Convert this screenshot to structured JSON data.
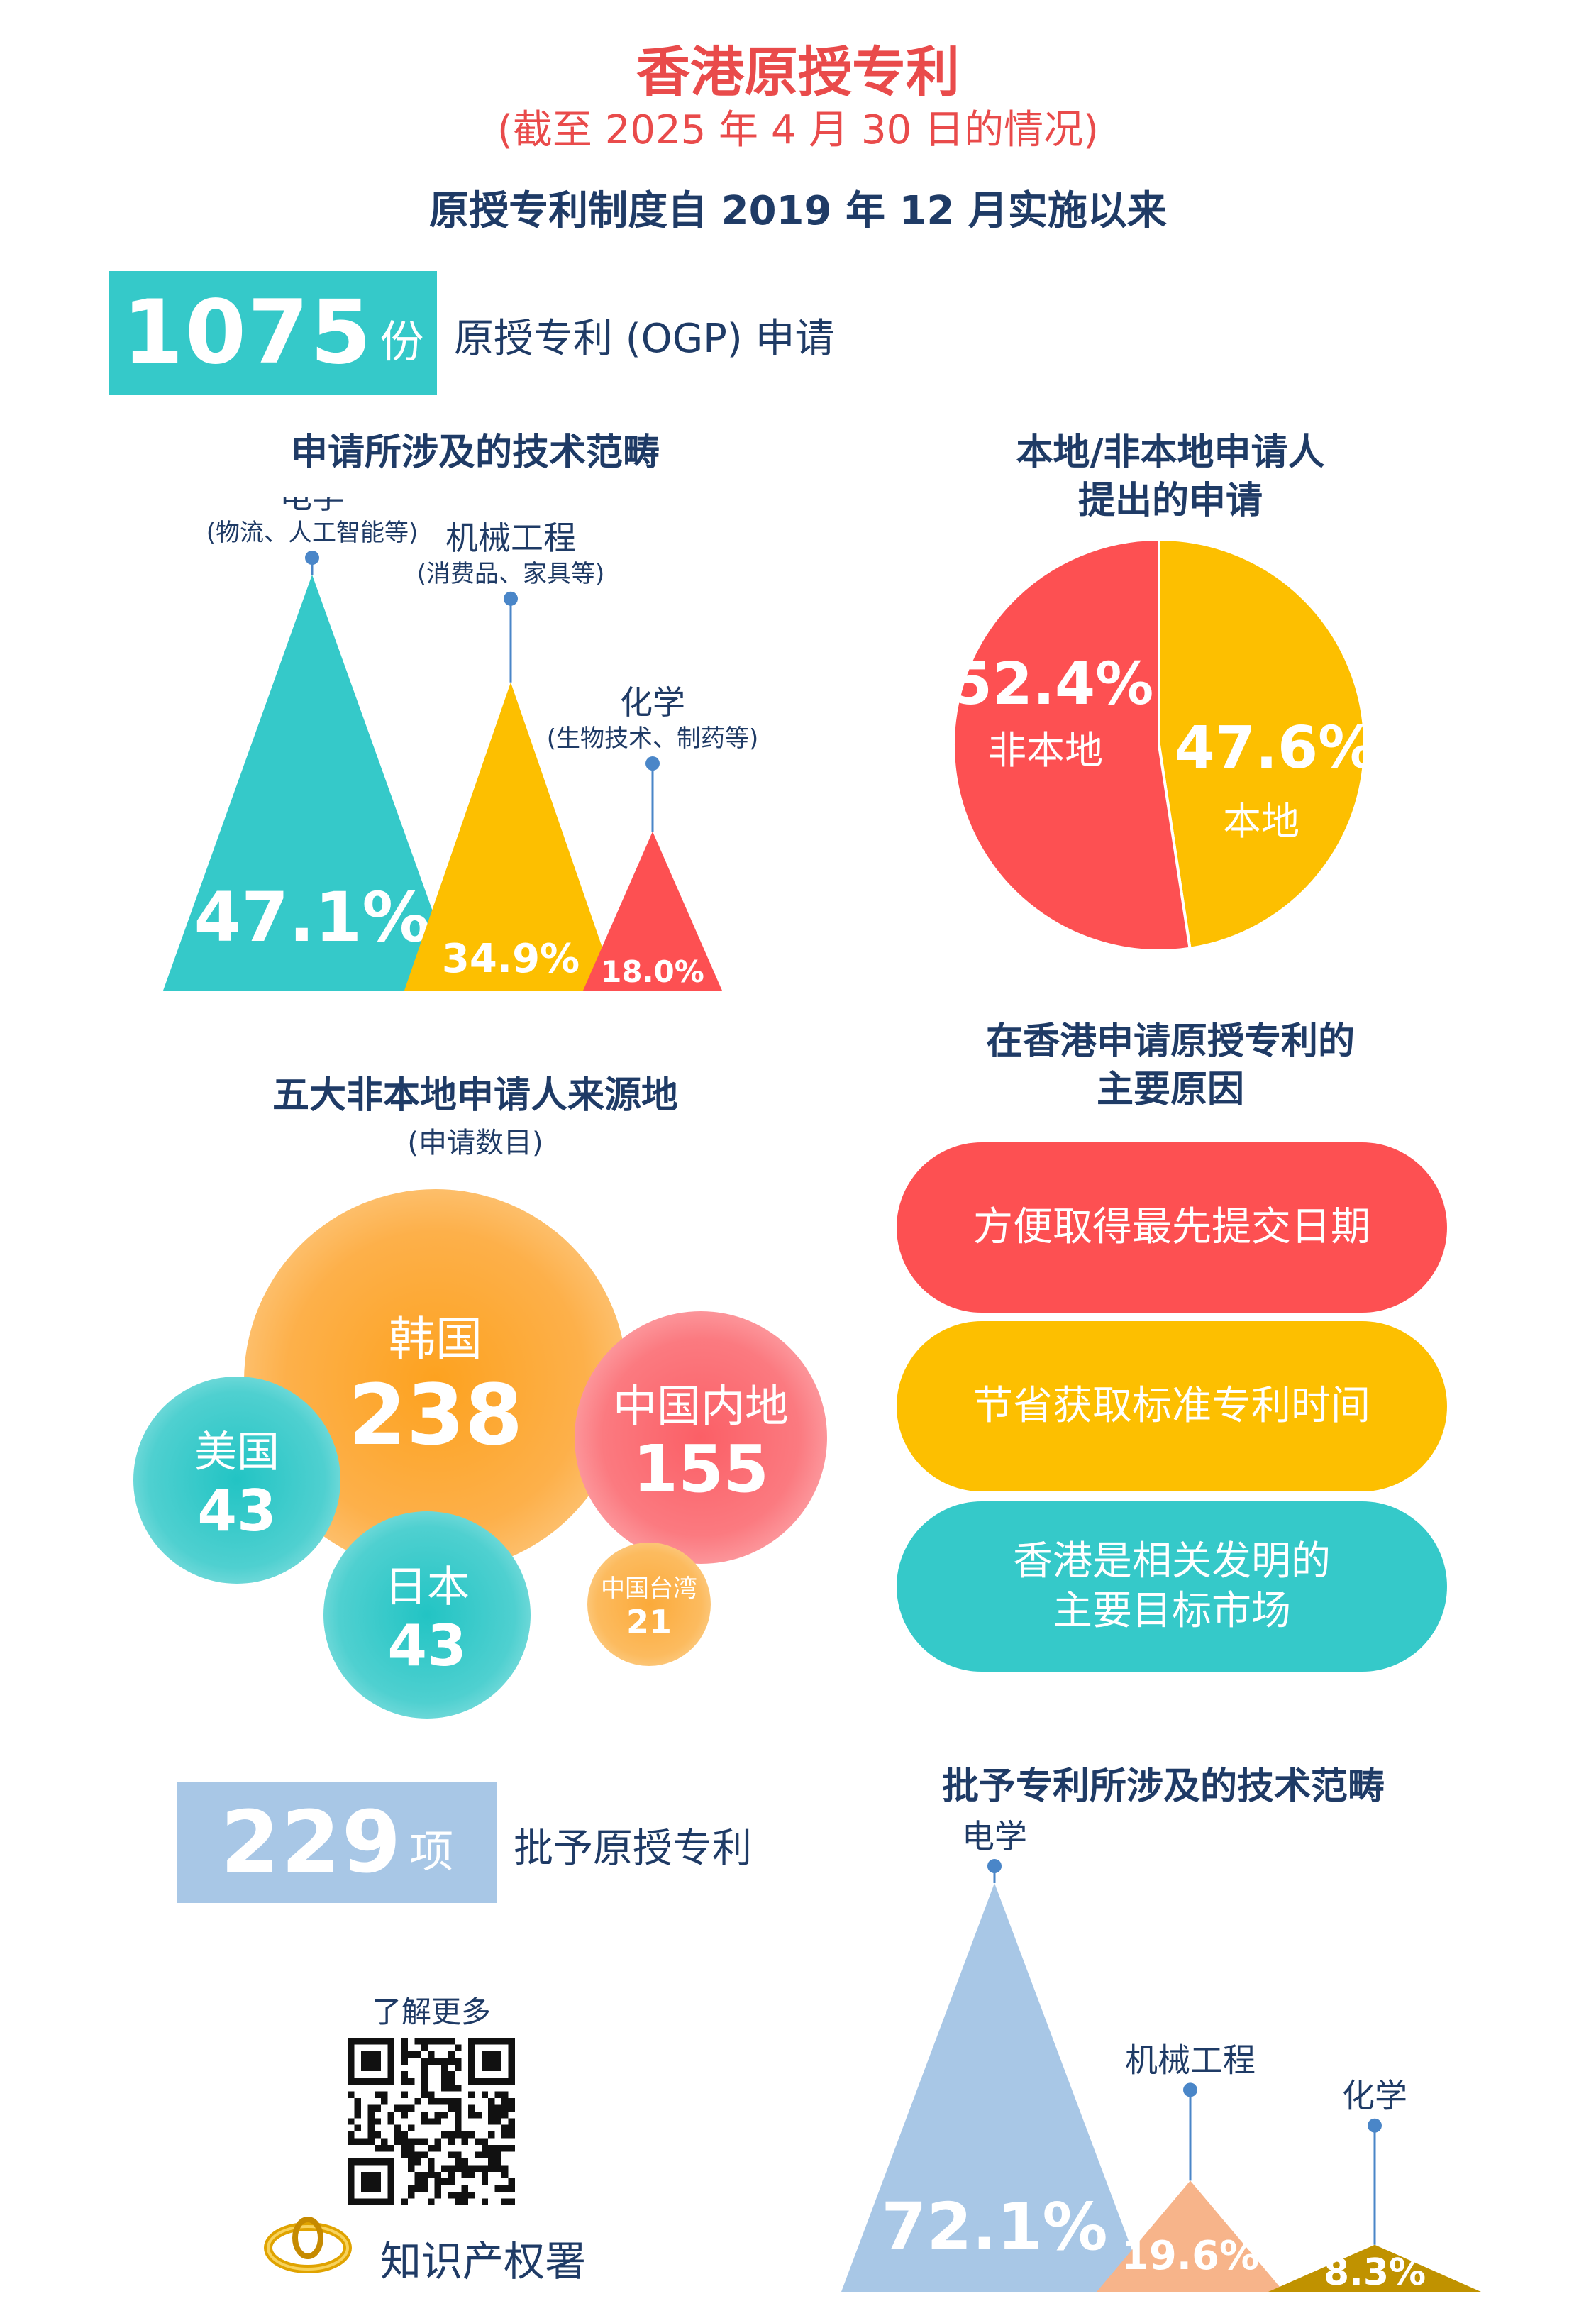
{
  "header": {
    "title": "香港原授专利",
    "subtitle": "(截至 2025 年 4 月 30 日的情况)",
    "since": "原授专利制度自 2019 年 12 月实施以来"
  },
  "applications": {
    "count": "1075",
    "unit": "份",
    "label": "原授专利 (OGP) 申请"
  },
  "grants": {
    "count": "229",
    "unit": "项",
    "label": "批予原授专利"
  },
  "footer": {
    "learn_more": "了解更多",
    "org": "知识产权署"
  },
  "colors": {
    "teal": "#35c9c9",
    "yellow": "#fdbf00",
    "red": "#fd5052",
    "lightblue": "#a8c7e6",
    "peach": "#f7b48a",
    "gold": "#c09200"
  },
  "chart_data": [
    {
      "type": "bar",
      "title": "申请所涉及的技术范畴",
      "categories": [
        "电学",
        "机械工程",
        "化学"
      ],
      "notes": [
        "(物流、人工智能等)",
        "(消费品、家具等)",
        "(生物技术、制药等)"
      ],
      "values": [
        47.1,
        34.9,
        18.0
      ],
      "labels": [
        "47.1%",
        "34.9%",
        "18.0%"
      ],
      "colors": [
        "#35c9c9",
        "#fdbf00",
        "#fd5052"
      ]
    },
    {
      "type": "pie",
      "title_lines": [
        "本地/非本地申请人",
        "提出的申请"
      ],
      "slices": [
        {
          "name": "非本地",
          "value": 52.4,
          "label": "52.4%",
          "color": "#fd5052"
        },
        {
          "name": "本地",
          "value": 47.6,
          "label": "47.6%",
          "color": "#fdbf00"
        }
      ]
    },
    {
      "type": "bubble",
      "title": "五大非本地申请人来源地",
      "subtitle": "(申请数目)",
      "items": [
        {
          "name": "韩国",
          "value": 238
        },
        {
          "name": "中国内地",
          "value": 155
        },
        {
          "name": "美国",
          "value": 43
        },
        {
          "name": "日本",
          "value": 43
        },
        {
          "name": "中国台湾",
          "value": 21
        }
      ]
    },
    {
      "type": "table",
      "title_lines": [
        "在香港申请原授专利的",
        "主要原因"
      ],
      "reasons": [
        "方便取得最先提交日期",
        "节省获取标准专利时间",
        "香港是相关发明的\n主要目标市场"
      ]
    },
    {
      "type": "bar",
      "title": "批予专利所涉及的技术范畴",
      "categories": [
        "电学",
        "机械工程",
        "化学"
      ],
      "values": [
        72.1,
        19.6,
        8.3
      ],
      "labels": [
        "72.1%",
        "19.6%",
        "8.3%"
      ],
      "colors": [
        "#a8c7e6",
        "#f7b48a",
        "#c09200"
      ]
    }
  ]
}
